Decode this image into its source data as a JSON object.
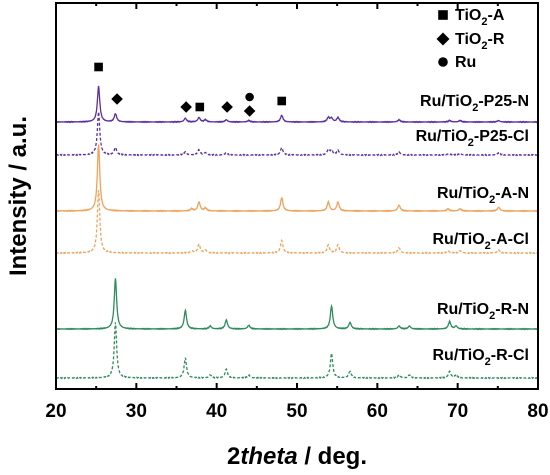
{
  "chart_data": {
    "type": "line",
    "xlabel_prefix": "2",
    "xlabel_italic": "theta",
    "xlabel_suffix": " / deg.",
    "ylabel": "Intensity / a.u.",
    "xlim": [
      20,
      80
    ],
    "xticks": [
      "20",
      "30",
      "40",
      "50",
      "60",
      "70",
      "80"
    ],
    "yticks_shown": false,
    "legend": {
      "position": "top-right",
      "entries": [
        {
          "marker": "square",
          "base": "TiO",
          "sub": "2",
          "tail": "-A"
        },
        {
          "marker": "diamond",
          "base": "TiO",
          "sub": "2",
          "tail": "-R"
        },
        {
          "marker": "circle",
          "base": "Ru",
          "sub": "",
          "tail": ""
        }
      ]
    },
    "peak_markers": [
      {
        "marker": "square",
        "x": 25.3
      },
      {
        "marker": "diamond",
        "x": 27.6
      },
      {
        "marker": "diamond",
        "x": 36.2
      },
      {
        "marker": "square",
        "x": 37.9
      },
      {
        "marker": "diamond",
        "x": 41.3
      },
      {
        "marker": "diamond",
        "x": 44.1
      },
      {
        "marker": "circle",
        "x": 44.1
      },
      {
        "marker": "square",
        "x": 48.1
      }
    ],
    "series": [
      {
        "name": "Ru/TiO2-P25-N",
        "label_base": "Ru/TiO",
        "label_sub": "2",
        "label_tail": "-P25-N",
        "color": "#5b2fa0",
        "dashed": false,
        "baseline": 10,
        "scale": 1.0,
        "peaks": [
          [
            25.3,
            48
          ],
          [
            27.4,
            11
          ],
          [
            36.1,
            5
          ],
          [
            37.8,
            6
          ],
          [
            38.6,
            3
          ],
          [
            41.2,
            3
          ],
          [
            44.0,
            2
          ],
          [
            48.1,
            9
          ],
          [
            53.9,
            6
          ],
          [
            54.3,
            5
          ],
          [
            55.1,
            6
          ],
          [
            62.7,
            3
          ],
          [
            69.0,
            2
          ],
          [
            70.3,
            2
          ],
          [
            75.1,
            2
          ]
        ]
      },
      {
        "name": "Ru/TiO2-P25-Cl",
        "label_base": "Ru/TiO",
        "label_sub": "2",
        "label_tail": "-P25-Cl",
        "color": "#5b2fa0",
        "dashed": true,
        "baseline": 9,
        "scale": 1.0,
        "peaks": [
          [
            25.3,
            58
          ],
          [
            27.4,
            10
          ],
          [
            36.1,
            4
          ],
          [
            37.8,
            7
          ],
          [
            38.6,
            3
          ],
          [
            41.2,
            3
          ],
          [
            48.1,
            10
          ],
          [
            53.9,
            7
          ],
          [
            54.3,
            6
          ],
          [
            55.1,
            6
          ],
          [
            62.7,
            4
          ],
          [
            68.9,
            2
          ],
          [
            70.3,
            2
          ],
          [
            75.1,
            3
          ]
        ]
      },
      {
        "name": "Ru/TiO2-A-N",
        "label_base": "Ru/TiO",
        "label_sub": "2",
        "label_tail": "-A-N",
        "color": "#f0a25a",
        "dashed": false,
        "baseline": 7,
        "scale": 1.0,
        "peaks": [
          [
            25.3,
            90
          ],
          [
            36.9,
            3
          ],
          [
            37.8,
            12
          ],
          [
            38.6,
            4
          ],
          [
            48.1,
            18
          ],
          [
            53.9,
            12
          ],
          [
            55.1,
            12
          ],
          [
            62.7,
            8
          ],
          [
            68.8,
            3
          ],
          [
            70.3,
            3
          ],
          [
            75.1,
            5
          ]
        ]
      },
      {
        "name": "Ru/TiO2-A-Cl",
        "label_base": "Ru/TiO",
        "label_sub": "2",
        "label_tail": "-A-Cl",
        "color": "#f0a25a",
        "dashed": true,
        "baseline": 5,
        "scale": 1.0,
        "peaks": [
          [
            25.3,
            85
          ],
          [
            36.9,
            3
          ],
          [
            37.8,
            12
          ],
          [
            38.6,
            4
          ],
          [
            48.1,
            17
          ],
          [
            53.9,
            11
          ],
          [
            55.1,
            11
          ],
          [
            62.7,
            7
          ],
          [
            68.8,
            3
          ],
          [
            70.3,
            3
          ],
          [
            75.1,
            4
          ]
        ]
      },
      {
        "name": "Ru/TiO2-R-N",
        "label_base": "Ru/TiO",
        "label_sub": "2",
        "label_tail": "-R-N",
        "color": "#2e8b5e",
        "dashed": false,
        "baseline": 4,
        "scale": 1.0,
        "peaks": [
          [
            27.4,
            68
          ],
          [
            36.1,
            25
          ],
          [
            39.2,
            4
          ],
          [
            41.2,
            12
          ],
          [
            44.0,
            5
          ],
          [
            54.3,
            31
          ],
          [
            56.6,
            9
          ],
          [
            62.7,
            4
          ],
          [
            64.0,
            4
          ],
          [
            69.0,
            10
          ],
          [
            69.8,
            4
          ]
        ]
      },
      {
        "name": "Ru/TiO2-R-Cl",
        "label_base": "Ru/TiO",
        "label_sub": "2",
        "label_tail": "-R-Cl",
        "color": "#2e8b5e",
        "dashed": true,
        "baseline": 3,
        "scale": 1.0,
        "peaks": [
          [
            27.4,
            75
          ],
          [
            36.1,
            27
          ],
          [
            39.2,
            4
          ],
          [
            41.2,
            12
          ],
          [
            44.0,
            4
          ],
          [
            54.3,
            33
          ],
          [
            56.6,
            9
          ],
          [
            62.7,
            4
          ],
          [
            64.0,
            4
          ],
          [
            69.0,
            9
          ],
          [
            69.8,
            4
          ]
        ]
      }
    ]
  }
}
